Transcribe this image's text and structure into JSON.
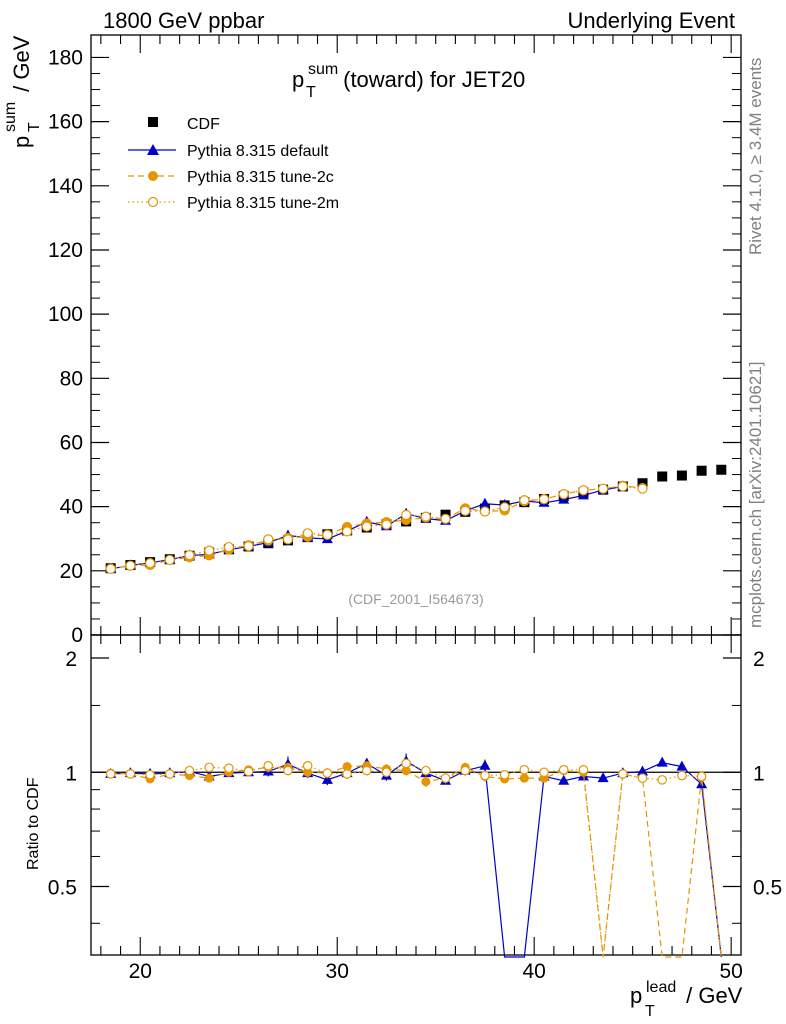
{
  "header": {
    "left": "1800 GeV ppbar",
    "right": "Underlying Event"
  },
  "side_labels": {
    "rivet": "Rivet 4.1.0, ≥ 3.4M events",
    "mcplots": "mcplots.cern.ch [arXiv:2401.10621]"
  },
  "colors": {
    "cdf": "#000000",
    "default": "#0000cc",
    "tune2c": "#e69500",
    "tune2m": "#e69500"
  },
  "chart_data": [
    {
      "type": "scatter",
      "title_main": "p",
      "title_sup": "sum",
      "title_sub": "T",
      "title_rest": " (toward) for JET20",
      "reference": "(CDF_2001_I564673)",
      "ylabel_main": "p",
      "ylabel_sup": "sum",
      "ylabel_sub": "T",
      "ylabel_rest": " / GeV",
      "xlim": [
        17.5,
        50.5
      ],
      "ylim": [
        0,
        187
      ],
      "yticks": [
        0,
        20,
        40,
        60,
        80,
        100,
        120,
        140,
        160,
        180
      ],
      "ytick_labels": [
        "0",
        "20",
        "40",
        "60",
        "80",
        "100",
        "120",
        "140",
        "160",
        "180"
      ],
      "legend_position": "top-left",
      "series": [
        {
          "name": "CDF",
          "marker": "square",
          "x": [
            18.5,
            19.5,
            20.5,
            21.5,
            22.5,
            23.5,
            24.5,
            25.5,
            26.5,
            27.5,
            28.5,
            29.5,
            30.5,
            31.5,
            32.5,
            33.5,
            34.5,
            35.5,
            36.5,
            37.5,
            38.5,
            39.5,
            40.5,
            41.5,
            42.5,
            43.5,
            44.5,
            45.5,
            46.5,
            47.5,
            48.5,
            49.5
          ],
          "values": [
            20.8,
            21.8,
            22.7,
            23.6,
            24.7,
            25.7,
            26.7,
            27.6,
            28.6,
            29.5,
            30.5,
            31.4,
            32.6,
            33.5,
            34.5,
            35.4,
            36.5,
            37.5,
            38.4,
            39.4,
            40.4,
            41.4,
            42.4,
            43.3,
            44.4,
            45.3,
            46.3,
            47.3,
            49.4,
            49.7,
            51.2,
            51.5
          ]
        },
        {
          "name": "Pythia 8.315 default",
          "marker": "triangle",
          "line": "solid",
          "x": [
            18.5,
            19.5,
            20.5,
            21.5,
            22.5,
            23.5,
            24.5,
            25.5,
            26.5,
            27.5,
            28.5,
            29.5,
            30.5,
            31.5,
            32.5,
            33.5,
            34.5,
            35.5,
            36.5,
            37.5,
            38.5,
            39.5,
            40.5,
            41.5,
            42.5,
            43.5,
            44.5
          ],
          "values": [
            20.6,
            21.7,
            22.5,
            23.5,
            24.8,
            25.1,
            26.6,
            27.6,
            28.8,
            31.0,
            30.3,
            29.9,
            32.4,
            35.3,
            33.9,
            37.8,
            36.3,
            35.6,
            38.7,
            40.9,
            40.5,
            41.8,
            41.2,
            42.2,
            43.5,
            45.2,
            46.3
          ],
          "yerr": [
            0.5,
            0.5,
            0.5,
            0.5,
            0.5,
            0.5,
            0.5,
            0.6,
            0.7,
            1.5,
            0.9,
            0.8,
            0.8,
            0.9,
            0.9,
            1.6,
            0.9,
            0.9,
            1.0,
            1.3,
            1.0,
            0.8,
            0.8,
            0.8,
            0.9,
            0.9,
            1.0
          ]
        },
        {
          "name": "Pythia 8.315 tune-2c",
          "marker": "circle-filled",
          "line": "dashed",
          "x": [
            18.5,
            19.5,
            20.5,
            21.5,
            22.5,
            23.5,
            24.5,
            25.5,
            26.5,
            27.5,
            28.5,
            29.5,
            30.5,
            31.5,
            32.5,
            33.5,
            34.5,
            35.5,
            36.5,
            37.5,
            38.5,
            39.5,
            40.5,
            41.5,
            42.5,
            43.5,
            44.5,
            45.5
          ],
          "values": [
            20.7,
            21.6,
            21.8,
            23.4,
            24.2,
            24.8,
            26.6,
            28.0,
            29.4,
            30.3,
            30.6,
            31.3,
            33.7,
            34.8,
            35.2,
            35.8,
            36.6,
            36.2,
            39.5,
            38.5,
            38.8,
            41.7,
            42.4,
            43.9,
            45.1,
            45.6,
            46.5,
            45.8
          ],
          "yerr": [
            0.5,
            0.5,
            0.5,
            0.5,
            0.5,
            0.5,
            0.5,
            0.6,
            0.8,
            0.9,
            0.9,
            0.8,
            0.8,
            0.9,
            0.9,
            1.0,
            0.9,
            0.9,
            1.2,
            0.9,
            0.9,
            0.8,
            0.8,
            0.8,
            0.9,
            0.9,
            1.0,
            1.0
          ]
        },
        {
          "name": "Pythia 8.315 tune-2m",
          "marker": "circle-open",
          "line": "dotted",
          "x": [
            18.5,
            19.5,
            20.5,
            21.5,
            22.5,
            23.5,
            24.5,
            25.5,
            26.5,
            27.5,
            28.5,
            29.5,
            30.5,
            31.5,
            32.5,
            33.5,
            34.5,
            35.5,
            36.5,
            37.5,
            38.5,
            39.5,
            40.5,
            41.5,
            42.5,
            43.5,
            44.5,
            45.5
          ],
          "values": [
            20.6,
            21.6,
            22.4,
            23.4,
            24.9,
            26.3,
            27.4,
            27.7,
            29.8,
            29.8,
            31.7,
            31.2,
            32.3,
            33.8,
            34.4,
            37.4,
            36.9,
            36.2,
            38.7,
            38.5,
            39.8,
            42.0,
            42.3,
            43.9,
            45.1,
            45.6,
            46.3,
            45.6
          ],
          "yerr": [
            0.5,
            0.5,
            0.5,
            0.5,
            0.5,
            0.5,
            0.5,
            0.6,
            0.8,
            0.8,
            0.9,
            0.8,
            0.8,
            0.9,
            0.9,
            1.0,
            0.9,
            0.9,
            1.0,
            0.9,
            0.9,
            0.8,
            0.8,
            0.8,
            0.9,
            0.9,
            1.0,
            1.0
          ]
        }
      ]
    },
    {
      "type": "line",
      "ylabel": "Ratio to CDF",
      "xlabel_main": "p",
      "xlabel_sup": "lead",
      "xlabel_sub": "T",
      "xlabel_rest": " / GeV",
      "xlim": [
        17.5,
        50.5
      ],
      "ylim": [
        0.33,
        2.3
      ],
      "scale": "log",
      "xticks": [
        20,
        30,
        40,
        50
      ],
      "xtick_labels": [
        "20",
        "30",
        "40",
        "50"
      ],
      "yticks": [
        0.5,
        1,
        2
      ],
      "ytick_labels": [
        "0.5",
        "1",
        "2"
      ],
      "right_ytick_labels": [
        "0.5",
        "1",
        "2"
      ],
      "series": [
        {
          "name": "Pythia 8.315 default",
          "x": [
            18.5,
            19.5,
            20.5,
            21.5,
            22.5,
            23.5,
            24.5,
            25.5,
            26.5,
            27.5,
            28.5,
            29.5,
            30.5,
            31.5,
            32.5,
            33.5,
            34.5,
            35.5,
            36.5,
            37.5,
            38.5,
            39.5,
            40.5,
            41.5,
            42.5,
            43.5,
            44.5,
            45.5,
            46.5,
            47.5,
            48.5,
            49.5
          ],
          "values": [
            0.99,
            0.995,
            0.99,
            0.995,
            1.005,
            0.975,
            0.995,
            1.0,
            1.005,
            1.05,
            0.995,
            0.955,
            0.995,
            1.055,
            0.98,
            1.07,
            0.995,
            0.95,
            1.01,
            1.04,
            null,
            null,
            0.975,
            0.95,
            0.975,
            0.965,
            0.995,
            1.005,
            1.06,
            1.035,
            0.93,
            null
          ],
          "yerr": [
            0.02,
            0.02,
            0.02,
            0.02,
            0.02,
            0.02,
            0.02,
            0.02,
            0.03,
            0.05,
            0.03,
            0.03,
            0.03,
            0.03,
            0.03,
            0.05,
            0.03,
            0.02,
            0.03,
            0.04,
            null,
            null,
            0.02,
            0.02,
            0.02,
            0.02,
            0.02,
            0.02,
            0.02,
            0.02,
            0.02,
            null
          ]
        },
        {
          "name": "Pythia 8.315 tune-2c",
          "x": [
            18.5,
            19.5,
            20.5,
            21.5,
            22.5,
            23.5,
            24.5,
            25.5,
            26.5,
            27.5,
            28.5,
            29.5,
            30.5,
            31.5,
            32.5,
            33.5,
            34.5,
            35.5,
            36.5,
            37.5,
            38.5,
            39.5,
            40.5,
            41.5,
            42.5,
            43.5,
            44.5,
            45.5,
            46.5,
            47.5,
            48.5,
            49.5
          ],
          "values": [
            0.995,
            0.99,
            0.96,
            0.99,
            0.98,
            0.965,
            1.0,
            1.015,
            1.03,
            1.03,
            1.0,
            0.995,
            1.035,
            1.04,
            1.02,
            1.01,
            0.945,
            0.965,
            1.03,
            0.975,
            0.96,
            0.965,
            0.965,
            1.01,
            1.0,
            null,
            0.99,
            0.965,
            null,
            null,
            0.97,
            null
          ],
          "yerr": [
            0.02,
            0.02,
            0.02,
            0.02,
            0.02,
            0.02,
            0.02,
            0.02,
            0.03,
            0.03,
            0.03,
            0.03,
            0.03,
            0.03,
            0.03,
            0.03,
            0.03,
            0.03,
            0.03,
            0.03,
            0.02,
            0.02,
            0.02,
            0.02,
            0.02,
            null,
            0.02,
            0.02,
            null,
            null,
            0.02,
            null
          ]
        },
        {
          "name": "Pythia 8.315 tune-2m",
          "x": [
            18.5,
            19.5,
            20.5,
            21.5,
            22.5,
            23.5,
            24.5,
            25.5,
            26.5,
            27.5,
            28.5,
            29.5,
            30.5,
            31.5,
            32.5,
            33.5,
            34.5,
            35.5,
            36.5,
            37.5,
            38.5,
            39.5,
            40.5,
            41.5,
            42.5,
            43.5,
            44.5,
            45.5,
            46.5,
            47.5,
            48.5,
            49.5
          ],
          "values": [
            0.99,
            0.99,
            0.985,
            0.99,
            1.01,
            1.03,
            1.025,
            1.005,
            1.04,
            1.01,
            1.04,
            0.995,
            0.99,
            1.01,
            1.0,
            1.055,
            1.01,
            0.965,
            1.01,
            0.98,
            0.985,
            1.015,
            1.0,
            1.015,
            1.015,
            null,
            0.99,
            0.965,
            0.955,
            0.98,
            0.975,
            null
          ],
          "yerr": [
            0.02,
            0.02,
            0.02,
            0.02,
            0.02,
            0.02,
            0.02,
            0.02,
            0.03,
            0.03,
            0.03,
            0.03,
            0.03,
            0.03,
            0.03,
            0.03,
            0.03,
            0.03,
            0.03,
            0.03,
            0.02,
            0.02,
            0.02,
            0.02,
            0.02,
            null,
            0.02,
            0.02,
            0.02,
            0.02,
            0.02,
            null
          ]
        }
      ]
    }
  ]
}
